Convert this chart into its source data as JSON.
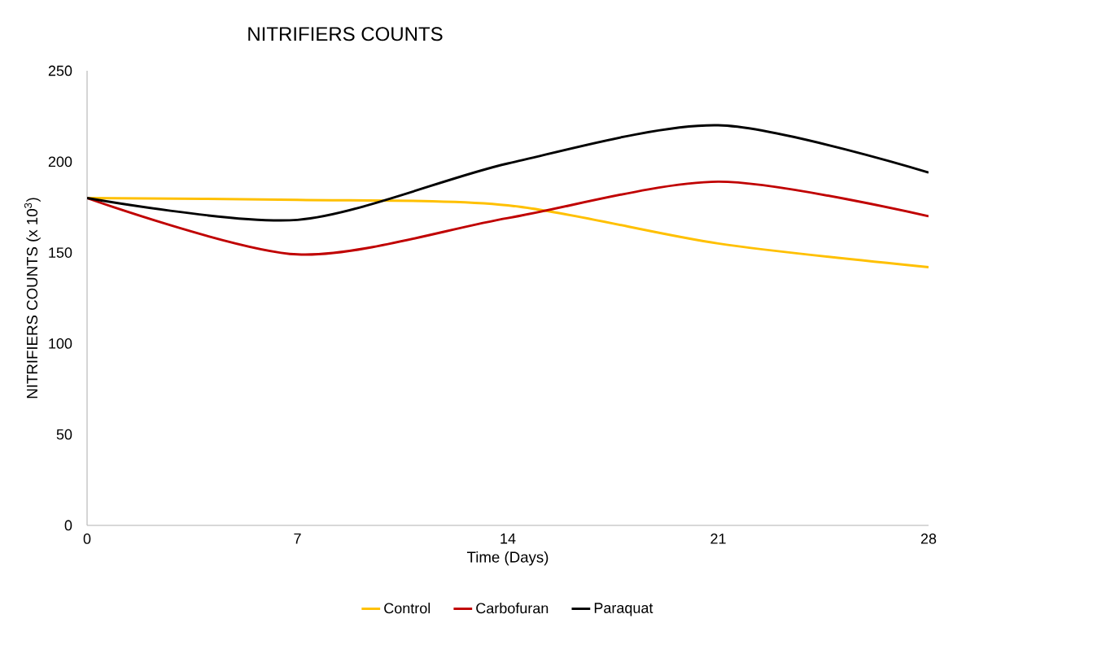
{
  "chart_data": {
    "type": "line",
    "title": "NITRIFIERS COUNTS",
    "xlabel": "Time (Days)",
    "ylabel": "NITRIFIERS COUNTS (x 10$^{3}$)",
    "x": [
      0,
      7,
      14,
      21,
      28
    ],
    "xlim": [
      0,
      28
    ],
    "xticks": [
      0,
      7,
      14,
      21,
      28
    ],
    "ylim": [
      0,
      250
    ],
    "yticks": [
      0,
      50,
      100,
      150,
      200,
      250
    ],
    "grid": false,
    "legend": "bottom",
    "marker": "none",
    "line_style": "solid",
    "series": [
      {
        "name": "Control",
        "color": "#ffc000",
        "values": [
          180,
          179,
          176,
          155,
          142
        ]
      },
      {
        "name": "Carbofuran",
        "color": "#c00000",
        "values": [
          180,
          149,
          169,
          189,
          170
        ]
      },
      {
        "name": "Paraquat",
        "color": "#000000",
        "values": [
          180,
          168,
          199,
          220,
          194
        ]
      }
    ]
  }
}
